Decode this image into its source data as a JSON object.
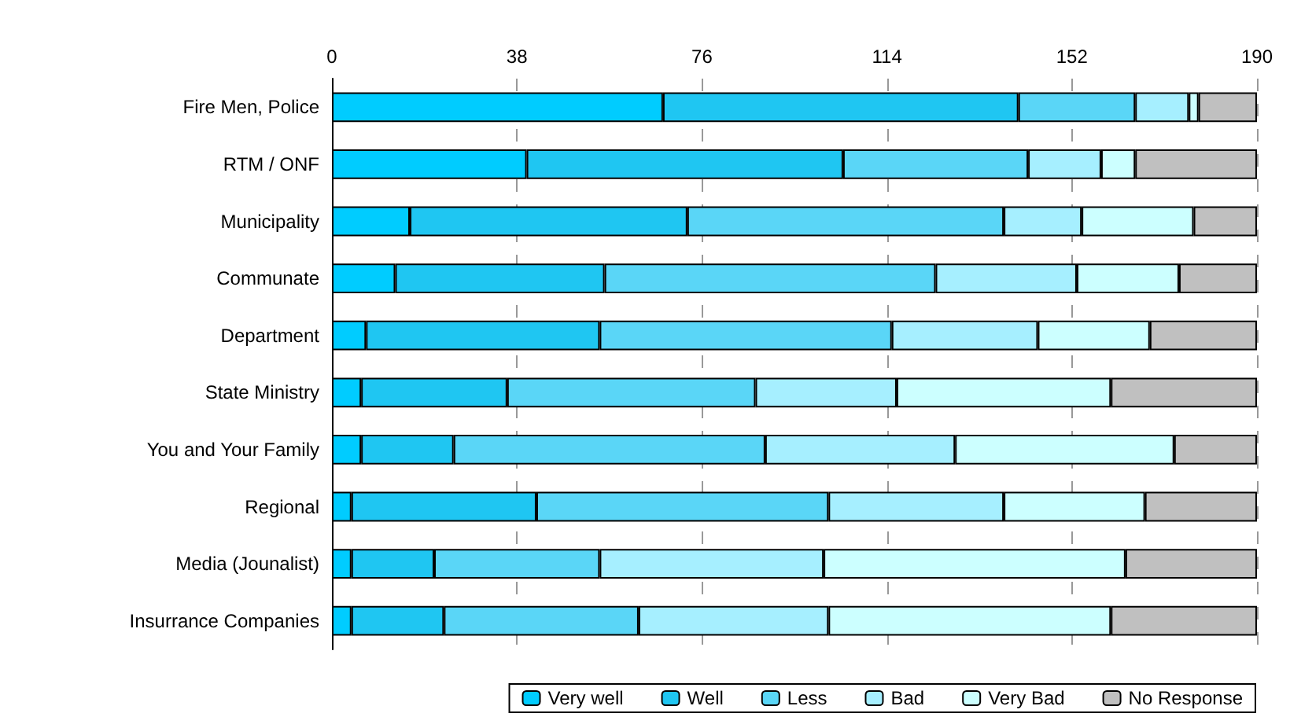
{
  "chart_data": {
    "type": "bar",
    "orientation": "horizontal",
    "stacked": true,
    "categories": [
      "Fire Men, Police",
      "RTM / ONF",
      "Municipality",
      "Communate",
      "Department",
      "State Ministry",
      "You and Your Family",
      "Regional",
      "Media (Jounalist)",
      "Insurrance Companies"
    ],
    "series": [
      {
        "name": "Very well",
        "color": "#00ccff",
        "values": [
          68,
          40,
          16,
          13,
          7,
          6,
          6,
          4,
          4,
          4
        ]
      },
      {
        "name": "Well",
        "color": "#1fc6f2",
        "values": [
          73,
          65,
          57,
          43,
          48,
          30,
          19,
          38,
          17,
          19
        ]
      },
      {
        "name": "Less",
        "color": "#5ad6f7",
        "values": [
          24,
          38,
          65,
          68,
          60,
          51,
          64,
          60,
          34,
          40
        ]
      },
      {
        "name": "Bad",
        "color": "#a6efff",
        "values": [
          11,
          15,
          16,
          29,
          30,
          29,
          39,
          36,
          46,
          39
        ]
      },
      {
        "name": "Very Bad",
        "color": "#ccffff",
        "values": [
          2,
          7,
          23,
          21,
          23,
          44,
          45,
          29,
          62,
          58
        ]
      },
      {
        "name": "No Response",
        "color": "#c0c0c0",
        "values": [
          12,
          25,
          13,
          16,
          22,
          30,
          17,
          23,
          27,
          30
        ]
      }
    ],
    "xlim": [
      0,
      190
    ],
    "xticks": [
      0,
      38,
      76,
      114,
      152,
      190
    ],
    "grid": "x",
    "legend": "bottom"
  }
}
